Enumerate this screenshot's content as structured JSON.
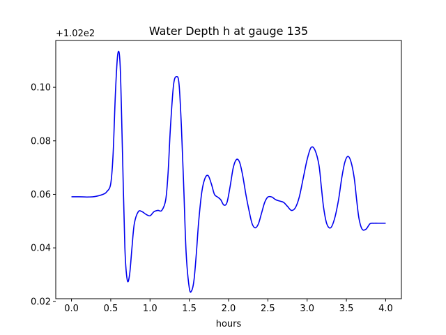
{
  "chart_data": {
    "type": "line",
    "title": "Water Depth h at gauge 135",
    "xlabel": "hours",
    "ylabel": "",
    "offset_label": "+1.02e2",
    "xlim": [
      -0.2,
      4.2
    ],
    "ylim": [
      0.021,
      0.1175
    ],
    "xticks": [
      0.0,
      0.5,
      1.0,
      1.5,
      2.0,
      2.5,
      3.0,
      3.5,
      4.0
    ],
    "xtick_labels": [
      "0.0",
      "0.5",
      "1.0",
      "1.5",
      "2.0",
      "2.5",
      "3.0",
      "3.5",
      "4.0"
    ],
    "yticks": [
      0.02,
      0.04,
      0.06,
      0.08,
      0.1
    ],
    "ytick_labels": [
      "0.02",
      "0.04",
      "0.06",
      "0.08",
      "0.10"
    ],
    "grid": false,
    "series": [
      {
        "color": "#0000ee",
        "x": [
          0.0,
          0.1,
          0.2,
          0.3,
          0.4,
          0.45,
          0.5,
          0.53,
          0.56,
          0.59,
          0.62,
          0.65,
          0.68,
          0.71,
          0.74,
          0.77,
          0.8,
          0.85,
          0.9,
          0.95,
          1.0,
          1.05,
          1.1,
          1.15,
          1.2,
          1.23,
          1.26,
          1.3,
          1.34,
          1.37,
          1.4,
          1.43,
          1.46,
          1.5,
          1.53,
          1.56,
          1.59,
          1.62,
          1.66,
          1.7,
          1.74,
          1.78,
          1.82,
          1.86,
          1.9,
          1.94,
          1.98,
          2.02,
          2.06,
          2.1,
          2.14,
          2.18,
          2.22,
          2.26,
          2.3,
          2.34,
          2.38,
          2.42,
          2.46,
          2.5,
          2.55,
          2.6,
          2.65,
          2.7,
          2.75,
          2.8,
          2.85,
          2.9,
          2.95,
          3.0,
          3.05,
          3.1,
          3.15,
          3.18,
          3.21,
          3.25,
          3.3,
          3.35,
          3.4,
          3.44,
          3.48,
          3.52,
          3.56,
          3.6,
          3.63,
          3.66,
          3.7,
          3.75,
          3.8,
          3.85,
          3.9,
          3.95,
          4.0
        ],
        "y": [
          0.0591,
          0.0591,
          0.059,
          0.0592,
          0.06,
          0.061,
          0.064,
          0.075,
          0.098,
          0.1125,
          0.108,
          0.075,
          0.04,
          0.028,
          0.03,
          0.04,
          0.049,
          0.0535,
          0.0535,
          0.0525,
          0.052,
          0.0535,
          0.054,
          0.054,
          0.058,
          0.068,
          0.085,
          0.101,
          0.104,
          0.101,
          0.085,
          0.062,
          0.038,
          0.025,
          0.024,
          0.028,
          0.038,
          0.05,
          0.061,
          0.066,
          0.067,
          0.064,
          0.06,
          0.059,
          0.058,
          0.056,
          0.057,
          0.063,
          0.07,
          0.073,
          0.072,
          0.067,
          0.06,
          0.054,
          0.049,
          0.0475,
          0.049,
          0.053,
          0.057,
          0.059,
          0.059,
          0.058,
          0.0575,
          0.057,
          0.0555,
          0.054,
          0.055,
          0.059,
          0.066,
          0.073,
          0.0775,
          0.0765,
          0.071,
          0.063,
          0.055,
          0.049,
          0.0475,
          0.051,
          0.058,
          0.066,
          0.072,
          0.0742,
          0.072,
          0.066,
          0.058,
          0.051,
          0.047,
          0.047,
          0.049,
          0.0492,
          0.0492,
          0.0492,
          0.0492
        ]
      }
    ]
  }
}
